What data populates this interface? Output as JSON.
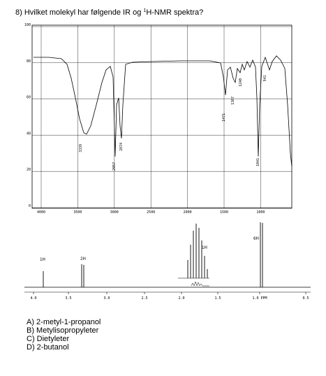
{
  "question": {
    "before": "8) Hvilket molekyl har følgende IR og ",
    "sup": "1",
    "after": "H-NMR spektra?"
  },
  "ir": {
    "yticks": [
      "100",
      "80",
      "60",
      "40",
      "20",
      "0"
    ],
    "xticks": [
      "4000",
      "3500",
      "3000",
      "2500",
      "2000",
      "1500",
      "1000"
    ],
    "peaks": [
      "3339",
      "2957",
      "2874",
      "1471",
      "1307",
      "1240",
      "941",
      "1041"
    ]
  },
  "nmr": {
    "xticks": [
      "4.0",
      "3.5",
      "3.0",
      "2.5",
      "2.0",
      "1.5",
      "1.0 PPM",
      "0.5"
    ],
    "integrals": [
      "1H",
      "2H",
      "1H",
      "6H"
    ]
  },
  "options": [
    "A) 2-metyl-1-propanol",
    "B) Metylisopropyleter",
    "C) Dietyleter",
    "D) 2-butanol"
  ]
}
